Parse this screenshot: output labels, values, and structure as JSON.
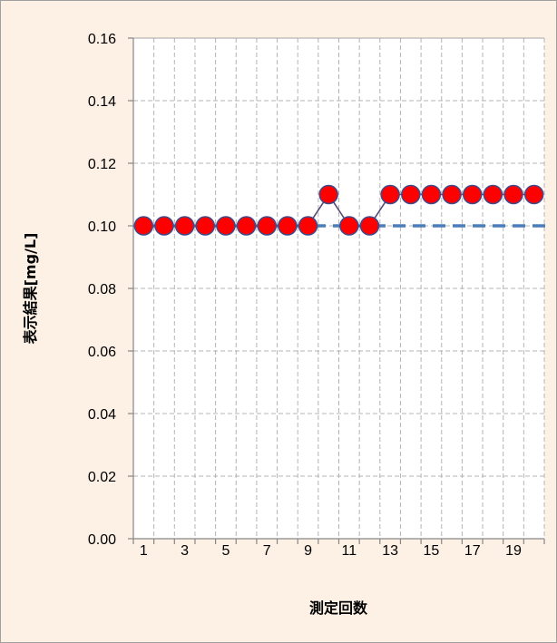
{
  "chart_data": {
    "type": "line",
    "title": "",
    "xlabel": "測定回数",
    "ylabel": "表示結果[mg/L]",
    "x": [
      1,
      2,
      3,
      4,
      5,
      6,
      7,
      8,
      9,
      10,
      11,
      12,
      13,
      14,
      15,
      16,
      17,
      18,
      19,
      20
    ],
    "xtick_labels": [
      "1",
      "3",
      "5",
      "7",
      "9",
      "11",
      "13",
      "15",
      "17",
      "19"
    ],
    "ytick_labels": [
      "0.00",
      "0.02",
      "0.04",
      "0.06",
      "0.08",
      "0.10",
      "0.12",
      "0.14",
      "0.16"
    ],
    "ylim": [
      0,
      0.16
    ],
    "ystep": 0.02,
    "grid": true,
    "series": [
      {
        "values": [
          0.1,
          0.1,
          0.1,
          0.1,
          0.1,
          0.1,
          0.1,
          0.1,
          0.1,
          0.11,
          0.1,
          0.1,
          0.11,
          0.11,
          0.11,
          0.11,
          0.11,
          0.11,
          0.11,
          0.11
        ],
        "marker_color": "#ff0000",
        "marker_edge_color": "#3f4a8a",
        "line_color": "#5a4a7a"
      }
    ],
    "reference_line": {
      "value": 0.1,
      "color": "#4a7ebb",
      "style": "dashed"
    },
    "colors": {
      "background": "#fdf1e6",
      "plot_background": "#ffffff",
      "grid": "#b4b4b4",
      "axis": "#868686"
    }
  }
}
